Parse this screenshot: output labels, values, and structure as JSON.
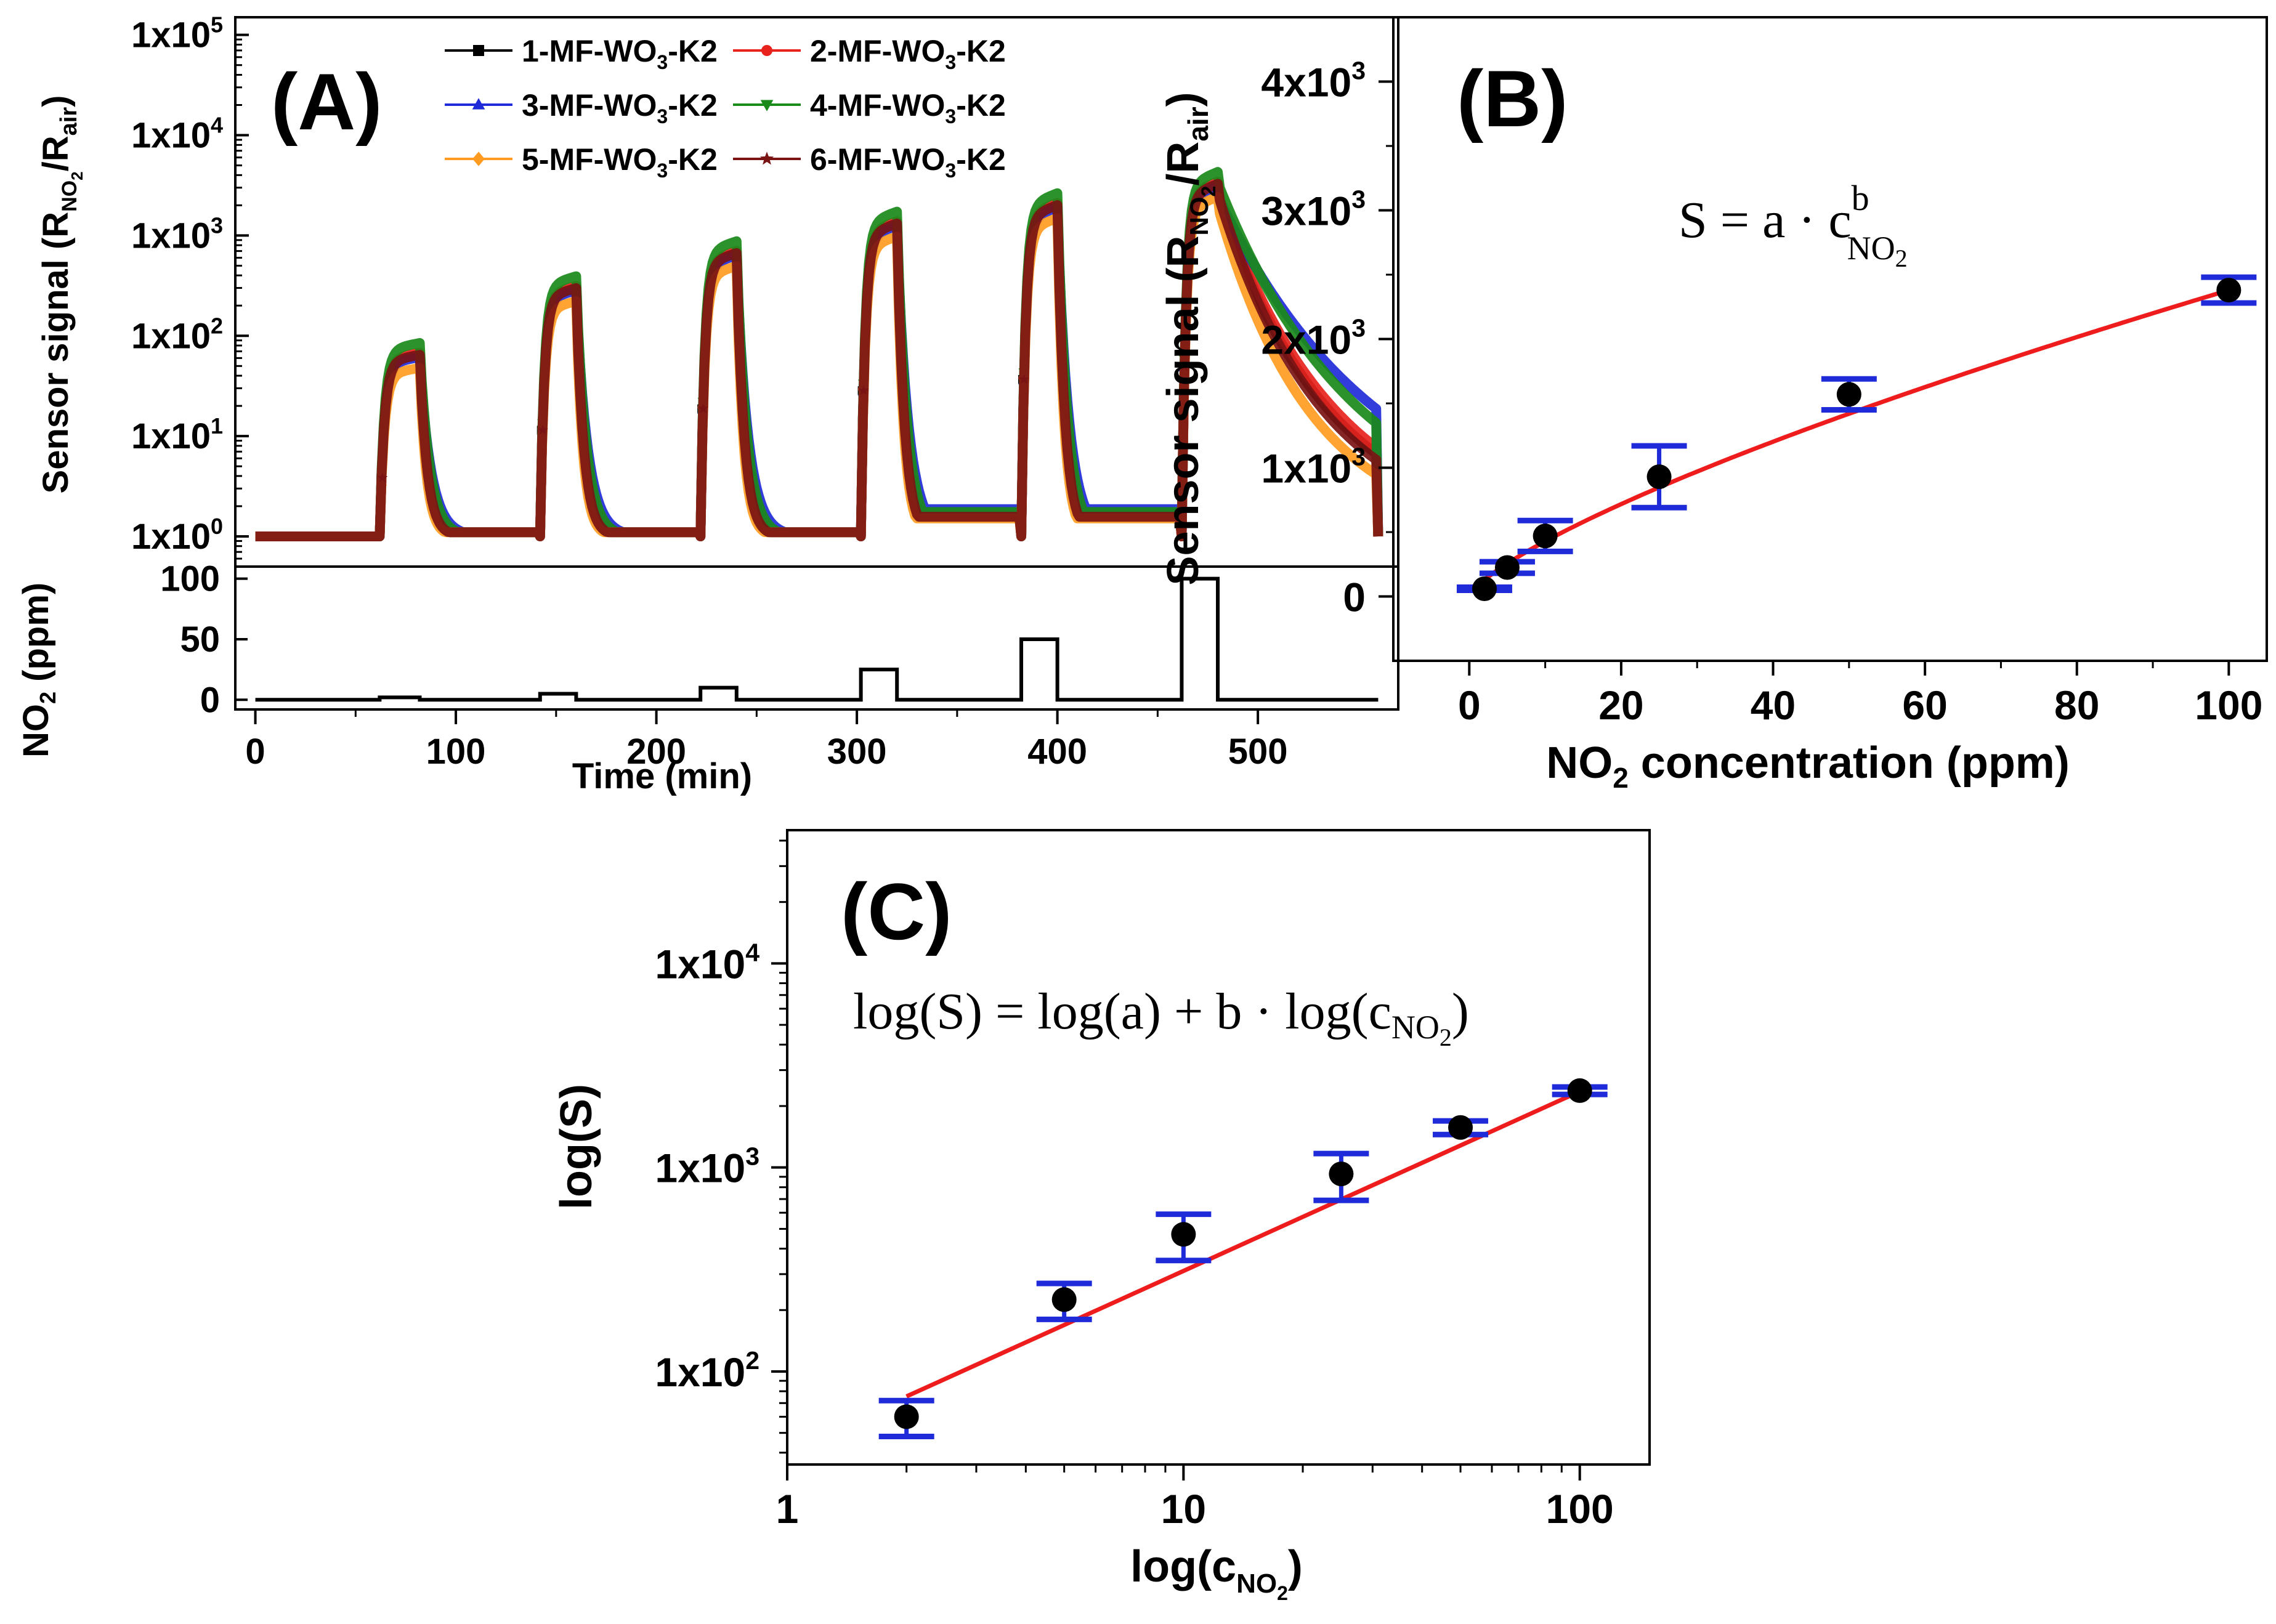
{
  "chart_data": [
    {
      "panel": "(A)",
      "type": "line",
      "xlabel": "Time (min)",
      "ylabel": "Sensor signal (R_NO2/R_air)",
      "ylabel_parts": {
        "main": "Sensor signal (R",
        "sub1": "NO",
        "sub2": "2",
        "mid": "/R",
        "sub3": "air",
        "end": ")"
      },
      "yscale": "log",
      "ylim": [
        0.5,
        150000
      ],
      "xlim": [
        -10,
        570
      ],
      "xticks": [
        0,
        100,
        200,
        300,
        400,
        500
      ],
      "xtick_labels": [
        "0",
        "100",
        "200",
        "300",
        "400",
        "500"
      ],
      "yticks": [
        1,
        10,
        100,
        1000,
        10000,
        100000
      ],
      "ytick_labels": [
        {
          "base": "1x10",
          "exp": "0"
        },
        {
          "base": "1x10",
          "exp": "1"
        },
        {
          "base": "1x10",
          "exp": "2"
        },
        {
          "base": "1x10",
          "exp": "3"
        },
        {
          "base": "1x10",
          "exp": "4"
        },
        {
          "base": "1x10",
          "exp": "5"
        }
      ],
      "legend_position": "top-right",
      "pulses": [
        {
          "start": 62,
          "end": 82,
          "concentration_ppm": 2,
          "peak": 55
        },
        {
          "start": 142,
          "end": 160,
          "concentration_ppm": 5,
          "peak": 240
        },
        {
          "start": 222,
          "end": 240,
          "concentration_ppm": 10,
          "peak": 520
        },
        {
          "start": 302,
          "end": 320,
          "concentration_ppm": 25,
          "peak": 1000
        },
        {
          "start": 382,
          "end": 400,
          "concentration_ppm": 50,
          "peak": 1500
        },
        {
          "start": 462,
          "end": 480,
          "concentration_ppm": 100,
          "peak": 2400
        }
      ],
      "baseline": 1.0,
      "series": [
        {
          "name": "1-MF-WO3-K2",
          "label_main": "1-MF-WO",
          "label_sub": "3",
          "label_end": "-K2",
          "color": "#000000",
          "marker": "square",
          "scale": 1.0,
          "tail": 1.0
        },
        {
          "name": "2-MF-WO3-K2",
          "label_main": "2-MF-WO",
          "label_sub": "3",
          "label_end": "-K2",
          "color": "#e8231d",
          "marker": "circle",
          "scale": 1.05,
          "tail": 1.05
        },
        {
          "name": "3-MF-WO3-K2",
          "label_main": "3-MF-WO",
          "label_sub": "3",
          "label_end": "-K2",
          "color": "#1f2bd8",
          "marker": "triangle-up",
          "scale": 0.95,
          "tail": 1.45
        },
        {
          "name": "4-MF-WO3-K2",
          "label_main": "4-MF-WO",
          "label_sub": "3",
          "label_end": "-K2",
          "color": "#1a8a1a",
          "marker": "triangle-down",
          "scale": 1.3,
          "tail": 1.25
        },
        {
          "name": "5-MF-WO3-K2",
          "label_main": "5-MF-WO",
          "label_sub": "3",
          "label_end": "-K2",
          "color": "#ff9b21",
          "marker": "diamond",
          "scale": 0.75,
          "tail": 0.85
        },
        {
          "name": "6-MF-WO3-K2",
          "label_main": "6-MF-WO",
          "label_sub": "3",
          "label_end": "-K2",
          "color": "#7a1414",
          "marker": "star",
          "scale": 1.0,
          "tail": 0.95
        }
      ],
      "sub_panel": {
        "ylabel_main": "NO",
        "ylabel_sub": "2",
        "ylabel_end": " (ppm)",
        "ylim": [
          -8,
          110
        ],
        "yticks": [
          0,
          50,
          100
        ],
        "ytick_labels": [
          "0",
          "50",
          "100"
        ],
        "color": "#000000"
      }
    },
    {
      "panel": "(B)",
      "type": "scatter",
      "xlabel": "NO2 concentration (ppm)",
      "xlabel_parts": {
        "main": "NO",
        "sub": "2",
        "end": " concentration (ppm)"
      },
      "ylabel": "Sensor signal (R_NO2/R_air)",
      "ylabel_parts": {
        "main": "Sensor signal (R",
        "sub1": "NO",
        "sub2": "2",
        "mid": "/R",
        "sub3": "air",
        "end": ")"
      },
      "xlim": [
        -10,
        105
      ],
      "ylim": [
        -500,
        4500
      ],
      "xticks": [
        0,
        20,
        40,
        60,
        80,
        100
      ],
      "xtick_labels": [
        "0",
        "20",
        "40",
        "60",
        "80",
        "100"
      ],
      "yticks": [
        0,
        1000,
        2000,
        3000,
        4000
      ],
      "ytick_labels": [
        {
          "base": "0",
          "exp": ""
        },
        {
          "base": "1x10",
          "exp": "3"
        },
        {
          "base": "2x10",
          "exp": "3"
        },
        {
          "base": "3x10",
          "exp": "3"
        },
        {
          "base": "4x10",
          "exp": "3"
        }
      ],
      "x": [
        2,
        5,
        10,
        25,
        50,
        100
      ],
      "y": [
        60,
        225,
        470,
        930,
        1570,
        2380
      ],
      "yerr": [
        12,
        45,
        120,
        240,
        120,
        100
      ],
      "fit": {
        "a": 77,
        "b": 0.745,
        "color": "#ee1c1c",
        "xrange": [
          2,
          100
        ]
      },
      "equation": {
        "lhs": "S = a · c",
        "sup": "b",
        "sub": "NO",
        "sub2": "2"
      },
      "marker_color": "#000000",
      "errorbar_color": "#1f2bd8"
    },
    {
      "panel": "(C)",
      "type": "scatter",
      "xlabel": "log(c_NO2)",
      "xlabel_parts": {
        "main": "log(c",
        "sub": "NO",
        "sub2": "2",
        "end": ")"
      },
      "ylabel": "log(S)",
      "xscale": "log",
      "yscale": "log",
      "xlim": [
        1,
        150
      ],
      "ylim": [
        35,
        45000
      ],
      "xticks": [
        1,
        10,
        100
      ],
      "xtick_labels": [
        "1",
        "10",
        "100"
      ],
      "yticks": [
        100,
        1000,
        10000
      ],
      "ytick_labels": [
        {
          "base": "1x10",
          "exp": "2"
        },
        {
          "base": "1x10",
          "exp": "3"
        },
        {
          "base": "1x10",
          "exp": "4"
        }
      ],
      "x": [
        2,
        5,
        10,
        25,
        50,
        100
      ],
      "y": [
        60,
        225,
        470,
        930,
        1570,
        2380
      ],
      "yerr": [
        12,
        45,
        120,
        240,
        120,
        100
      ],
      "fit": {
        "a": 41,
        "b": 0.88,
        "color": "#ee1c1c",
        "xrange": [
          2,
          100
        ]
      },
      "equation": {
        "lhs": "log(S) = log(a) + b · log(c",
        "sub": "NO",
        "sub2": "2",
        "end": ")"
      },
      "marker_color": "#000000",
      "errorbar_color": "#1f2bd8"
    }
  ]
}
